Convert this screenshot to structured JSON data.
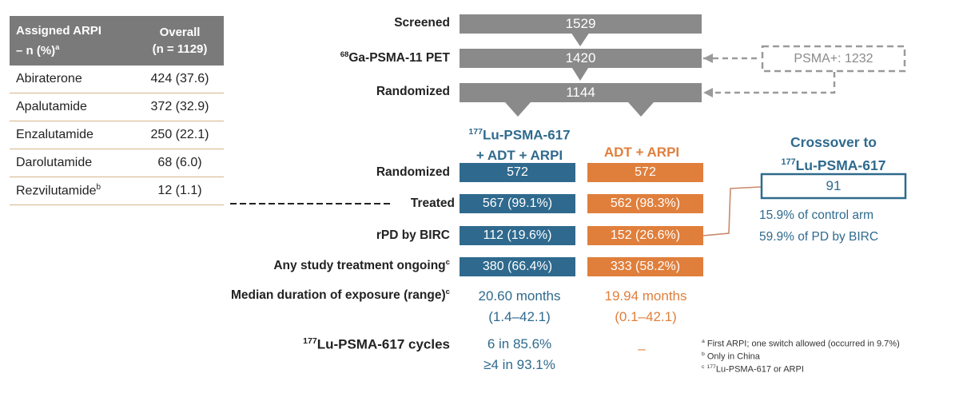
{
  "table": {
    "head_col1_l1": "Assigned ARPI",
    "head_col1_l2": "– n (%)",
    "head_col1_sup": "a",
    "head_col2_l1": "Overall",
    "head_col2_l2": "(n = 1129)",
    "rows": [
      {
        "name": "Abiraterone",
        "sup": "",
        "value": "424 (37.6)"
      },
      {
        "name": "Apalutamide",
        "sup": "",
        "value": "372 (32.9)"
      },
      {
        "name": "Enzalutamide",
        "sup": "",
        "value": "250 (22.1)"
      },
      {
        "name": "Darolutamide",
        "sup": "",
        "value": "68 (6.0)"
      },
      {
        "name": "Rezvilutamide",
        "sup": "b",
        "value": "12 (1.1)"
      }
    ]
  },
  "flow": {
    "screened_label": "Screened",
    "screened_value": "1529",
    "pet_label_sup": "68",
    "pet_label": "Ga-PSMA-11 PET",
    "pet_value": "1420",
    "psma_pos": "PSMA+: 1232",
    "randomized_label": "Randomized",
    "randomized_value": "1144"
  },
  "arms": {
    "lu_sup": "177",
    "lu_title_l1": "Lu-PSMA-617",
    "lu_title_l2": "+ ADT + ARPI",
    "ctrl_title": "ADT + ARPI"
  },
  "rows": {
    "randomized": {
      "label": "Randomized",
      "lu": "572",
      "ctrl": "572"
    },
    "treated": {
      "label": "Treated",
      "lu": "567 (99.1%)",
      "ctrl": "562 (98.3%)"
    },
    "rpd": {
      "label": "rPD by BIRC",
      "lu": "112 (19.6%)",
      "ctrl": "152 (26.6%)"
    },
    "ongoing": {
      "label": "Any study treatment ongoing",
      "sup": "c",
      "lu": "380 (66.4%)",
      "ctrl": "333 (58.2%)"
    },
    "duration": {
      "label": "Median duration of exposure (range)",
      "sup": "c",
      "lu_l1": "20.60 months",
      "lu_l2": "(1.4–42.1)",
      "ctrl_l1": "19.94 months",
      "ctrl_l2": "(0.1–42.1)"
    },
    "cycles": {
      "label_sup": "177",
      "label": "Lu-PSMA-617 cycles",
      "lu_l1": "6 in 85.6%",
      "lu_l2": "≥4 in 93.1%",
      "ctrl": "–"
    }
  },
  "crossover": {
    "title_l1": "Crossover to",
    "title_sup": "177",
    "title_l2": "Lu-PSMA-617",
    "value": "91",
    "line1": "15.9% of control arm",
    "line2": "59.9% of PD by BIRC"
  },
  "footnotes": {
    "a_sup": "a",
    "a": "First ARPI; one switch allowed (occurred in 9.7%)",
    "b_sup": "b",
    "b": "Only in China",
    "c_sup": "c",
    "c_sup2": "177",
    "c": "Lu-PSMA-617 or ARPI"
  },
  "colors": {
    "grey": "#8a8a8a",
    "blue": "#2f6a8e",
    "orange": "#e07f3c"
  }
}
